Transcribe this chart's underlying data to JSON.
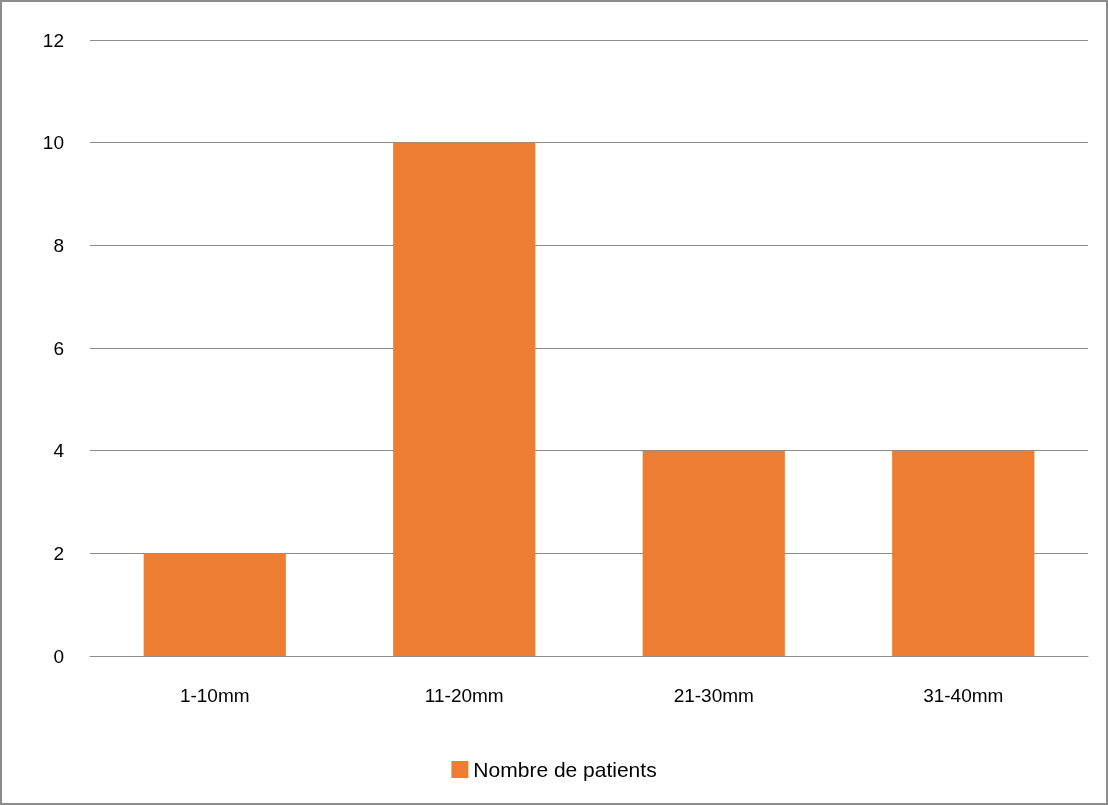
{
  "chart_data": {
    "type": "bar",
    "categories": [
      "1-10mm",
      "11-20mm",
      "21-30mm",
      "31-40mm"
    ],
    "series": [
      {
        "name": "Nombre de patients",
        "color": "#ed7d31",
        "values": [
          2,
          10,
          4,
          4
        ]
      }
    ],
    "ylim": [
      0,
      12
    ],
    "yticks": [
      0,
      2,
      4,
      6,
      8,
      10,
      12
    ],
    "grid": "y",
    "legend": "bottom"
  }
}
